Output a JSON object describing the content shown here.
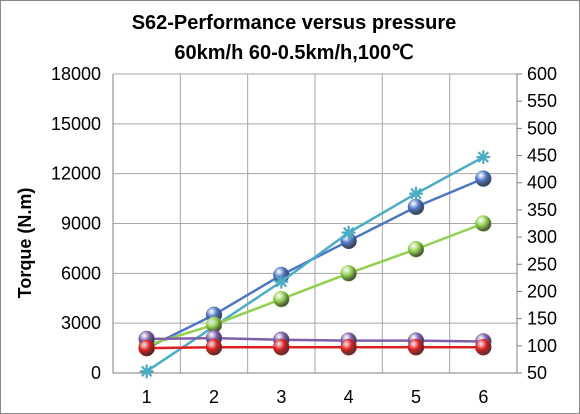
{
  "chart_data": {
    "type": "line",
    "title": "S62-Performance versus pressure",
    "subtitle": "60km/h 60-0.5km/h,100℃",
    "ylabel": "Torque (N.m)",
    "y2label": "",
    "xlabel": "",
    "x": [
      1,
      2,
      3,
      4,
      5,
      6
    ],
    "ylim": [
      0,
      18000
    ],
    "yticks": [
      0,
      3000,
      6000,
      9000,
      12000,
      15000,
      18000
    ],
    "y2lim": [
      50,
      600
    ],
    "y2ticks": [
      50,
      100,
      150,
      200,
      250,
      300,
      350,
      400,
      450,
      500,
      550,
      600
    ],
    "grid": true,
    "series": [
      {
        "axis": "left",
        "color": "#4f76c4",
        "marker": "ball",
        "values": [
          1500,
          3500,
          5900,
          7950,
          10000,
          11700
        ]
      },
      {
        "axis": "left",
        "color": "#4bacc6",
        "marker": "star",
        "values": [
          100,
          2800,
          5500,
          8450,
          10800,
          13000
        ]
      },
      {
        "axis": "left",
        "color": "#92d050",
        "marker": "ball",
        "values": [
          1650,
          2900,
          4450,
          6000,
          7450,
          9000
        ]
      },
      {
        "axis": "left",
        "color": "#7e5fa8",
        "marker": "ball",
        "values": [
          2050,
          2100,
          2000,
          1950,
          1950,
          1900
        ]
      },
      {
        "axis": "left",
        "color": "#e02020",
        "marker": "ball",
        "values": [
          1500,
          1550,
          1550,
          1550,
          1550,
          1550
        ]
      }
    ]
  }
}
